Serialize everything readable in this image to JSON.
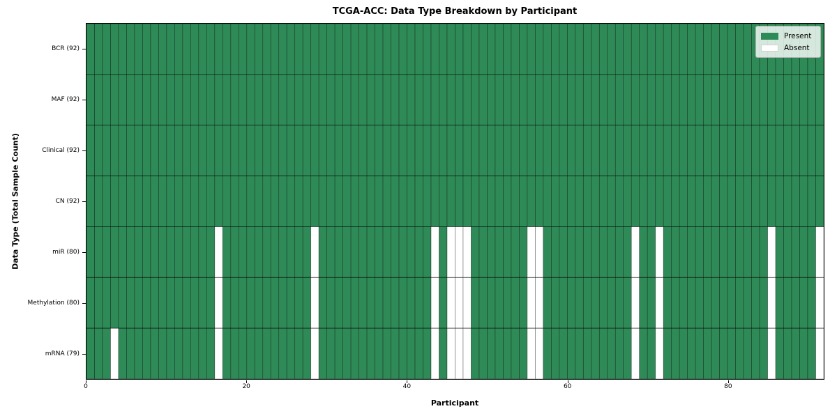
{
  "chart_data": {
    "type": "heatmap",
    "title": "TCGA-ACC: Data Type Breakdown by Participant",
    "xlabel": "Participant",
    "ylabel": "Data Type (Total Sample Count)",
    "x_ticks": [
      0,
      20,
      40,
      60,
      80
    ],
    "x_range": [
      0,
      92
    ],
    "n_participants": 92,
    "grid": "cell-edges",
    "legend_position": "upper right",
    "rows": [
      {
        "label": "BCR (92)",
        "data_type": "BCR",
        "total_samples": 92,
        "absent_participants": []
      },
      {
        "label": "MAF (92)",
        "data_type": "MAF",
        "total_samples": 92,
        "absent_participants": []
      },
      {
        "label": "Clinical (92)",
        "data_type": "Clinical",
        "total_samples": 92,
        "absent_participants": []
      },
      {
        "label": "CN (92)",
        "data_type": "CN",
        "total_samples": 92,
        "absent_participants": []
      },
      {
        "label": "miR (80)",
        "data_type": "miR",
        "total_samples": 80,
        "absent_participants": [
          16,
          28,
          43,
          45,
          46,
          47,
          55,
          56,
          68,
          71,
          85,
          91
        ]
      },
      {
        "label": "Methylation (80)",
        "data_type": "Methylation",
        "total_samples": 80,
        "absent_participants": [
          16,
          28,
          43,
          45,
          46,
          47,
          55,
          56,
          68,
          71,
          85,
          91
        ]
      },
      {
        "label": "mRNA (79)",
        "data_type": "mRNA",
        "total_samples": 79,
        "absent_participants": [
          3,
          16,
          28,
          43,
          45,
          46,
          47,
          55,
          56,
          68,
          71,
          85,
          91
        ]
      }
    ],
    "legend": [
      {
        "label": "Present",
        "color": "#2e8b57"
      },
      {
        "label": "Absent",
        "color": "#ffffff"
      }
    ],
    "colors": {
      "present": "#2e8b57",
      "absent": "#ffffff",
      "cell_edge": "#000000",
      "spine": "#000000",
      "legend_background": "rgba(255,255,255,0.8)"
    }
  }
}
